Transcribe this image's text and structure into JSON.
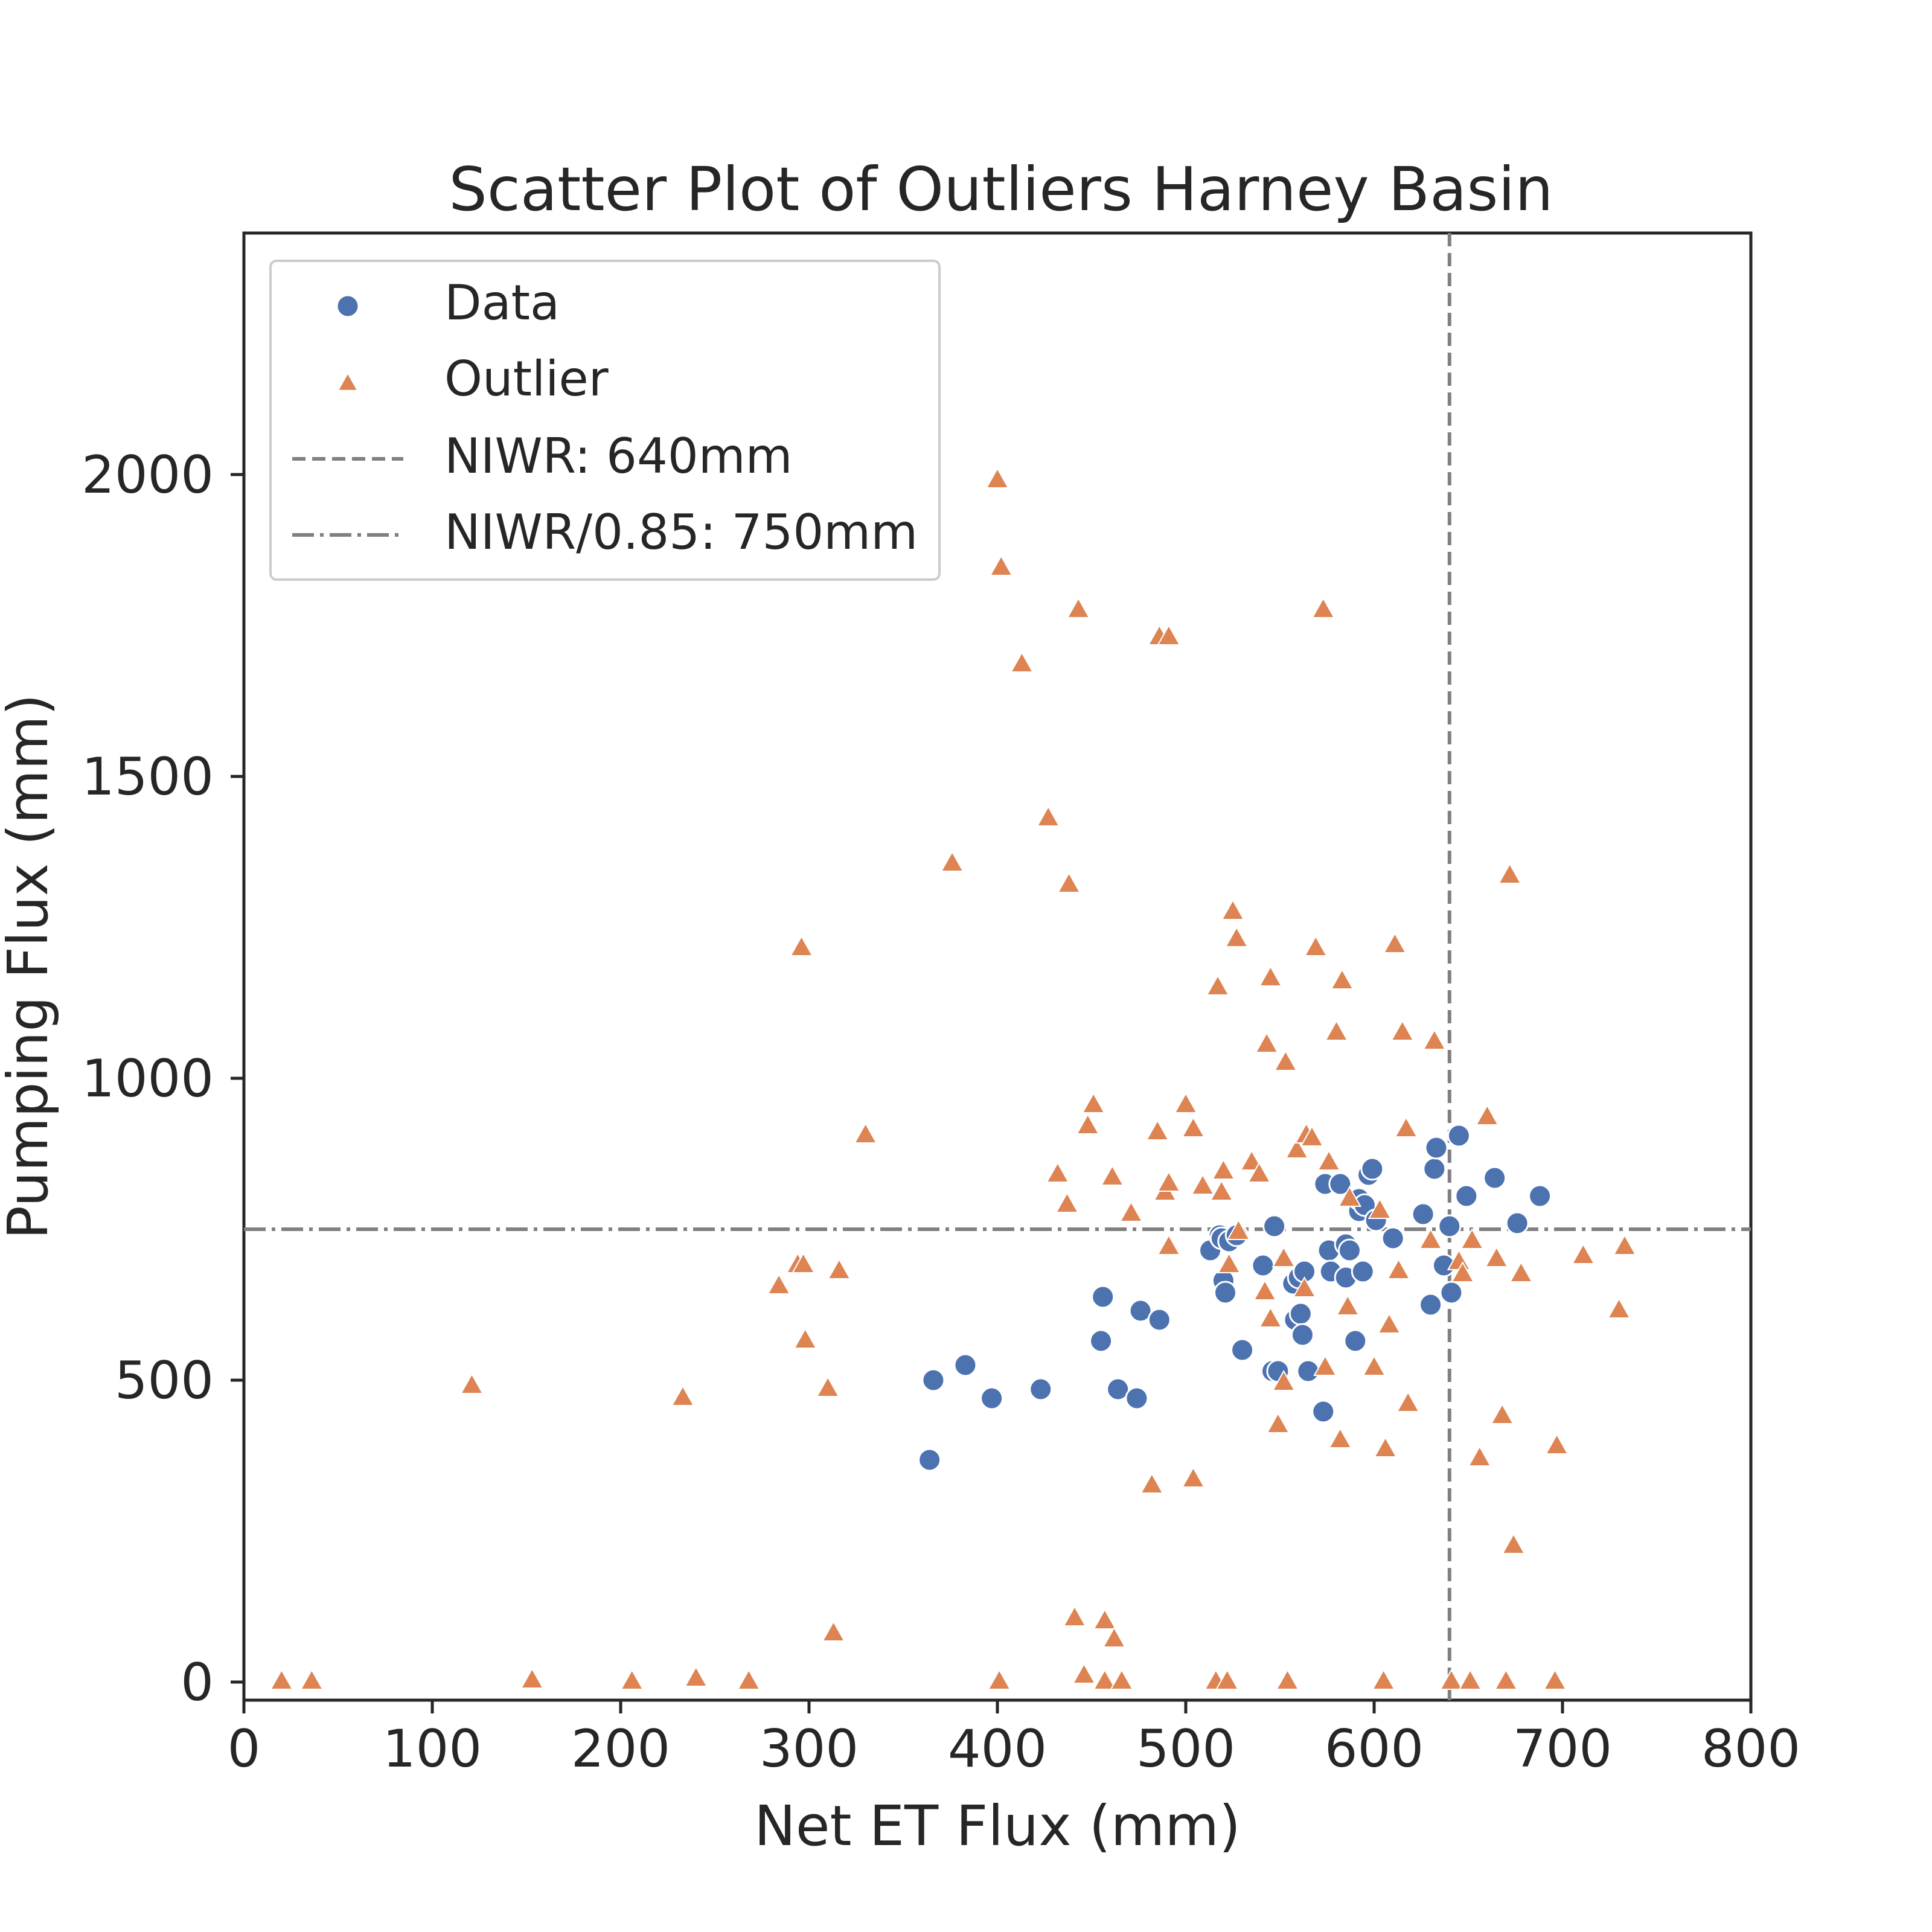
{
  "chart_data": {
    "type": "scatter",
    "title": "Scatter Plot of Outliers Harney Basin",
    "xlabel": "Net ET Flux (mm)",
    "ylabel": "Pumping Flux (mm)",
    "xlim": [
      0,
      800
    ],
    "ylim": [
      -30,
      2400
    ],
    "xticks": [
      "0",
      "100",
      "200",
      "300",
      "400",
      "500",
      "600",
      "700",
      "800"
    ],
    "yticks": [
      "0",
      "500",
      "1000",
      "1500",
      "2000"
    ],
    "grid": false,
    "legend_position": "top-left",
    "legend": [
      "Data",
      "Outlier",
      "NIWR: 640mm",
      "NIWR/0.85: 750mm"
    ],
    "reference_lines": [
      {
        "name": "NIWR: 640mm",
        "orientation": "vertical",
        "value": 640,
        "style": "dashed"
      },
      {
        "name": "NIWR/0.85: 750mm",
        "orientation": "horizontal",
        "value": 750,
        "style": "dashdot"
      }
    ],
    "series": [
      {
        "name": "Data",
        "marker": "circle",
        "color": "#4c72b0",
        "x": [
          364,
          366,
          383,
          397,
          423,
          455,
          456,
          464,
          474,
          476,
          486,
          513,
          518,
          519,
          520,
          521,
          523,
          527,
          530,
          541,
          545,
          546,
          547,
          549,
          557,
          558,
          560,
          561,
          562,
          563,
          565,
          573,
          574,
          576,
          577,
          582,
          585,
          585,
          587,
          590,
          592,
          592,
          594,
          595,
          597,
          599,
          601,
          610,
          626,
          630,
          632,
          633,
          637,
          640,
          641,
          645,
          649,
          664,
          676,
          688
        ],
        "y": [
          368,
          500,
          525,
          470,
          485,
          565,
          638,
          485,
          470,
          615,
          600,
          715,
          740,
          735,
          665,
          645,
          730,
          740,
          550,
          690,
          515,
          515,
          755,
          515,
          660,
          600,
          670,
          610,
          575,
          680,
          515,
          448,
          825,
          715,
          680,
          825,
          725,
          670,
          715,
          565,
          780,
          800,
          680,
          790,
          840,
          850,
          765,
          735,
          775,
          625,
          850,
          885,
          690,
          755,
          645,
          905,
          805,
          835,
          760,
          805
        ]
      },
      {
        "name": "Outlier",
        "marker": "triangle",
        "color": "#dd8452",
        "x": [
          20,
          36,
          121,
          153,
          206,
          233,
          240,
          268,
          284,
          294,
          296,
          297,
          298,
          310,
          313,
          316,
          330,
          376,
          400,
          401,
          402,
          413,
          427,
          432,
          437,
          438,
          441,
          443,
          446,
          448,
          451,
          457,
          457,
          461,
          462,
          466,
          471,
          482,
          485,
          486,
          489,
          491,
          491,
          491,
          500,
          504,
          504,
          509,
          516,
          517,
          519,
          520,
          522,
          523,
          525,
          527,
          528,
          535,
          539,
          542,
          543,
          545,
          545,
          549,
          552,
          552,
          553,
          554,
          559,
          563,
          564,
          567,
          569,
          573,
          574,
          576,
          580,
          582,
          583,
          586,
          587,
          600,
          603,
          605,
          606,
          608,
          611,
          613,
          615,
          617,
          618,
          630,
          632,
          641,
          645,
          647,
          651,
          652,
          656,
          660,
          665,
          668,
          670,
          672,
          674,
          678,
          696,
          697,
          711,
          730,
          733
        ],
        "y": [
          0,
          0,
          490,
          2,
          0,
          470,
          5,
          0,
          655,
          690,
          1215,
          690,
          565,
          485,
          80,
          680,
          905,
          1355,
          1990,
          0,
          1845,
          1685,
          1430,
          840,
          790,
          1320,
          105,
          1775,
          10,
          920,
          955,
          100,
          0,
          835,
          70,
          0,
          775,
          325,
          910,
          1730,
          810,
          1730,
          825,
          720,
          955,
          335,
          915,
          820,
          0,
          1150,
          810,
          845,
          0,
          690,
          1275,
          1230,
          745,
          860,
          840,
          645,
          1055,
          1165,
          600,
          425,
          700,
          495,
          1025,
          0,
          880,
          650,
          905,
          900,
          1215,
          1775,
          520,
          860,
          1075,
          400,
          1160,
          620,
          800,
          520,
          780,
          0,
          385,
          590,
          1220,
          680,
          1075,
          915,
          460,
          730,
          1060,
          0,
          695,
          675,
          0,
          730,
          370,
          935,
          700,
          440,
          0,
          1335,
          225,
          675,
          0,
          390,
          705,
          615,
          720
        ]
      }
    ]
  }
}
